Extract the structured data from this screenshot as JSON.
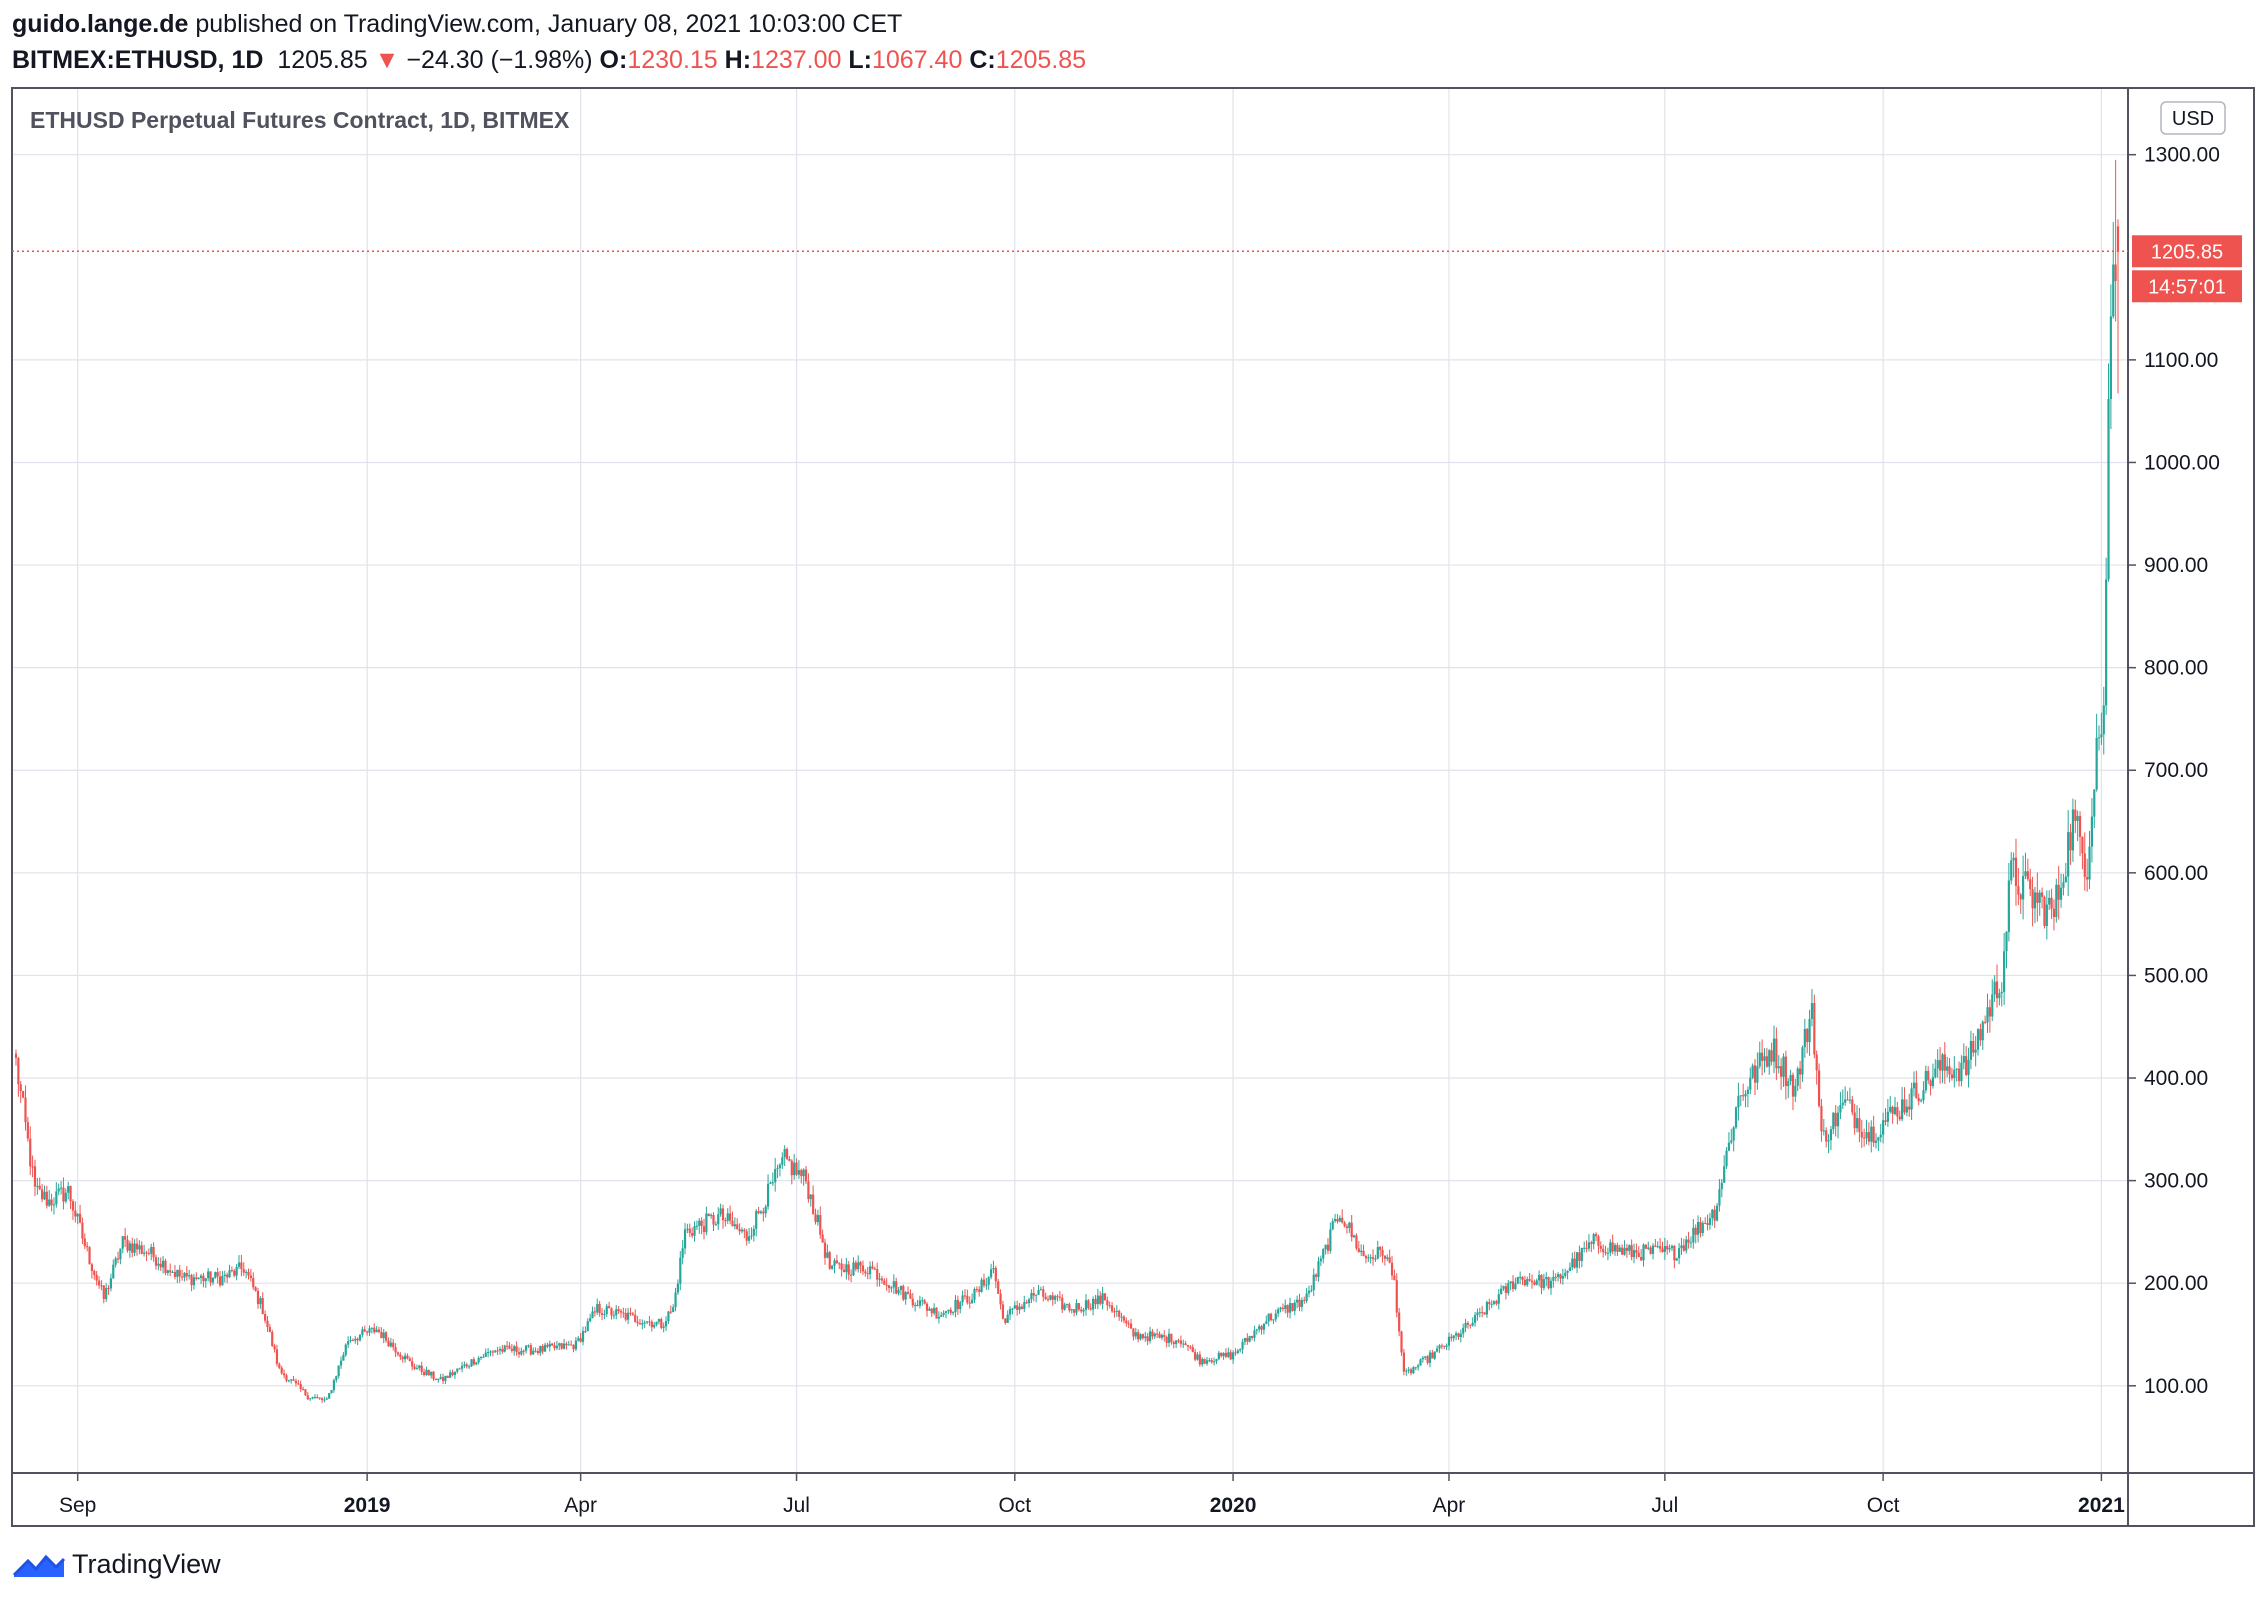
{
  "header": {
    "author": "guido.lange.de",
    "published_text": " published on TradingView.com, January 08, 2021 10:03:00 CET",
    "symbol": "BITMEX:ETHUSD, 1D",
    "last": "1205.85",
    "change_arrow": "▼",
    "change": "−24.30 (−1.98%)",
    "open_label": "O:",
    "open": "1230.15",
    "high_label": "H:",
    "high": "1237.00",
    "low_label": "L:",
    "low": "1067.40",
    "close_label": "C:",
    "close": "1205.85"
  },
  "chart_data": {
    "type": "candlestick",
    "title": "ETHUSD Perpetual Futures Contract, 1D, BITMEX",
    "currency": "USD",
    "ylim": [
      15,
      1365
    ],
    "yticks": [
      100,
      200,
      300,
      400,
      500,
      600,
      700,
      800,
      900,
      1000,
      1100,
      1300
    ],
    "ytick_labels": [
      "100.00",
      "200.00",
      "300.00",
      "400.00",
      "500.00",
      "600.00",
      "700.00",
      "800.00",
      "900.00",
      "1000.00",
      "1100.00",
      "1300.00"
    ],
    "x_start": "2018-08-06",
    "x_end": "2021-01-08",
    "xticks": [
      {
        "date": "2018-09-01",
        "label": "Sep",
        "bold": false
      },
      {
        "date": "2019-01-01",
        "label": "2019",
        "bold": true
      },
      {
        "date": "2019-04-01",
        "label": "Apr",
        "bold": false
      },
      {
        "date": "2019-07-01",
        "label": "Jul",
        "bold": false
      },
      {
        "date": "2019-10-01",
        "label": "Oct",
        "bold": false
      },
      {
        "date": "2020-01-01",
        "label": "2020",
        "bold": true
      },
      {
        "date": "2020-04-01",
        "label": "Apr",
        "bold": false
      },
      {
        "date": "2020-07-01",
        "label": "Jul",
        "bold": false
      },
      {
        "date": "2020-10-01",
        "label": "Oct",
        "bold": false
      },
      {
        "date": "2021-01-01",
        "label": "2021",
        "bold": true
      }
    ],
    "last_price": 1205.85,
    "last_price_label": "1205.85",
    "countdown": "14:57:01",
    "grid": true,
    "up_color": "#26a69a",
    "down_color": "#ef5350",
    "anchors": [
      [
        "2018-08-06",
        415
      ],
      [
        "2018-08-14",
        290
      ],
      [
        "2018-08-20",
        280
      ],
      [
        "2018-08-28",
        290
      ],
      [
        "2018-09-05",
        230
      ],
      [
        "2018-09-12",
        185
      ],
      [
        "2018-09-20",
        240
      ],
      [
        "2018-10-01",
        230
      ],
      [
        "2018-10-15",
        205
      ],
      [
        "2018-11-01",
        205
      ],
      [
        "2018-11-10",
        215
      ],
      [
        "2018-11-18",
        175
      ],
      [
        "2018-11-25",
        115
      ],
      [
        "2018-12-07",
        90
      ],
      [
        "2018-12-15",
        85
      ],
      [
        "2018-12-24",
        145
      ],
      [
        "2019-01-05",
        155
      ],
      [
        "2019-01-20",
        120
      ],
      [
        "2019-02-01",
        105
      ],
      [
        "2019-02-15",
        125
      ],
      [
        "2019-02-24",
        135
      ],
      [
        "2019-03-15",
        135
      ],
      [
        "2019-03-30",
        140
      ],
      [
        "2019-04-08",
        175
      ],
      [
        "2019-04-25",
        165
      ],
      [
        "2019-05-05",
        160
      ],
      [
        "2019-05-10",
        175
      ],
      [
        "2019-05-15",
        250
      ],
      [
        "2019-05-30",
        265
      ],
      [
        "2019-06-10",
        245
      ],
      [
        "2019-06-26",
        320
      ],
      [
        "2019-07-05",
        300
      ],
      [
        "2019-07-15",
        215
      ],
      [
        "2019-08-01",
        215
      ],
      [
        "2019-08-15",
        190
      ],
      [
        "2019-08-30",
        170
      ],
      [
        "2019-09-15",
        190
      ],
      [
        "2019-09-22",
        215
      ],
      [
        "2019-09-26",
        165
      ],
      [
        "2019-10-10",
        190
      ],
      [
        "2019-10-25",
        175
      ],
      [
        "2019-11-08",
        185
      ],
      [
        "2019-11-20",
        150
      ],
      [
        "2019-12-10",
        145
      ],
      [
        "2019-12-18",
        125
      ],
      [
        "2020-01-01",
        130
      ],
      [
        "2020-01-15",
        165
      ],
      [
        "2020-02-01",
        185
      ],
      [
        "2020-02-15",
        270
      ],
      [
        "2020-02-25",
        225
      ],
      [
        "2020-03-05",
        230
      ],
      [
        "2020-03-09",
        200
      ],
      [
        "2020-03-13",
        110
      ],
      [
        "2020-03-25",
        130
      ],
      [
        "2020-04-10",
        160
      ],
      [
        "2020-04-30",
        205
      ],
      [
        "2020-05-15",
        200
      ],
      [
        "2020-06-01",
        240
      ],
      [
        "2020-06-15",
        230
      ],
      [
        "2020-07-05",
        230
      ],
      [
        "2020-07-22",
        270
      ],
      [
        "2020-08-01",
        380
      ],
      [
        "2020-08-15",
        430
      ],
      [
        "2020-08-25",
        390
      ],
      [
        "2020-09-01",
        470
      ],
      [
        "2020-09-05",
        340
      ],
      [
        "2020-09-15",
        375
      ],
      [
        "2020-09-25",
        345
      ],
      [
        "2020-10-10",
        375
      ],
      [
        "2020-10-25",
        410
      ],
      [
        "2020-11-05",
        410
      ],
      [
        "2020-11-20",
        500
      ],
      [
        "2020-11-24",
        600
      ],
      [
        "2020-12-01",
        580
      ],
      [
        "2020-12-12",
        560
      ],
      [
        "2020-12-20",
        650
      ],
      [
        "2020-12-26",
        610
      ],
      [
        "2020-12-30",
        730
      ],
      [
        "2021-01-02",
        750
      ],
      [
        "2021-01-04",
        1050
      ],
      [
        "2021-01-06",
        1220
      ],
      [
        "2021-01-08",
        1205.85
      ]
    ]
  },
  "footer": {
    "brand": "TradingView"
  }
}
